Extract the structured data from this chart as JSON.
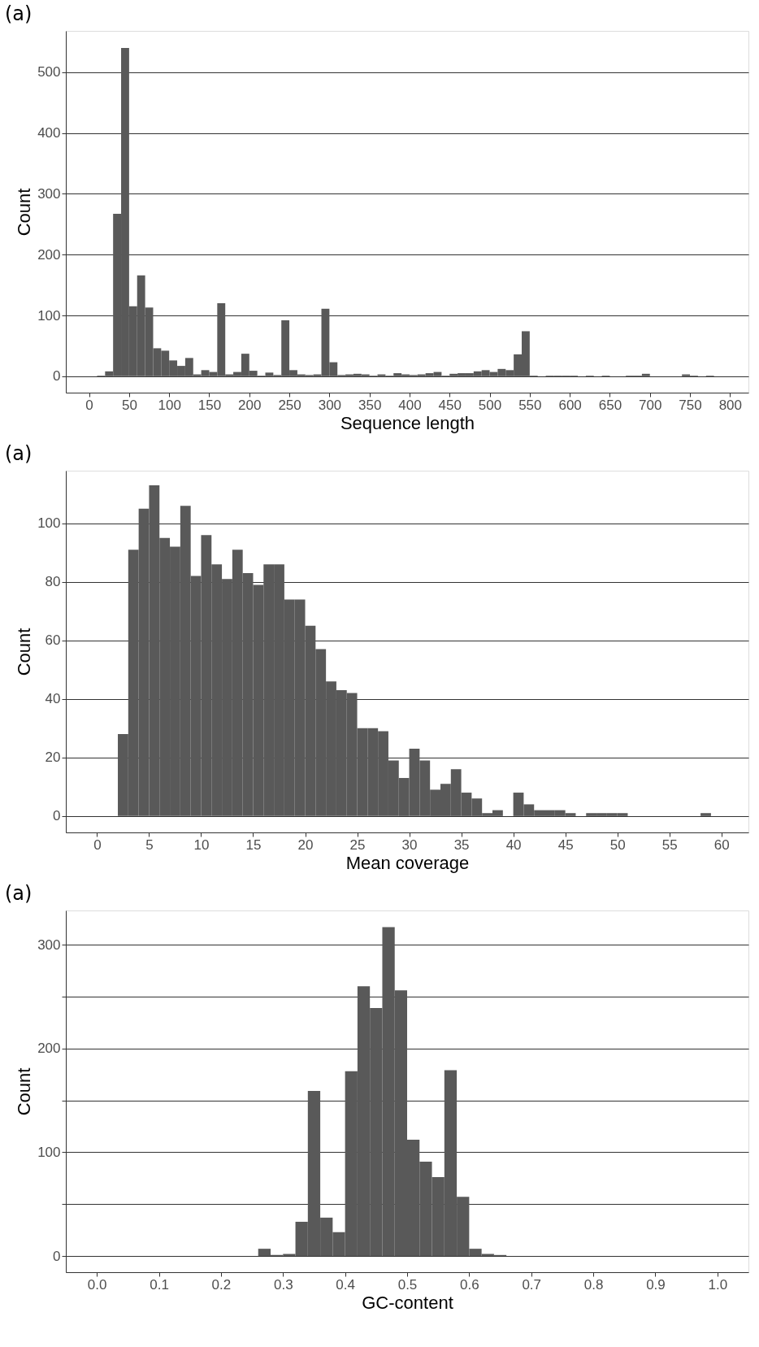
{
  "chart_data": [
    {
      "type": "histogram",
      "title": "(a)",
      "xlabel": "Sequence length",
      "ylabel": "Count",
      "color": "#595959",
      "grid": "y",
      "bins": [
        10,
        20,
        30,
        40,
        50,
        60,
        70,
        80,
        90,
        100,
        110,
        120,
        130,
        140,
        150,
        160,
        170,
        180,
        190,
        200,
        210,
        220,
        230,
        240,
        250,
        260,
        270,
        280,
        290,
        300,
        310,
        320,
        330,
        340,
        350,
        360,
        370,
        380,
        390,
        400,
        410,
        420,
        430,
        440,
        450,
        460,
        470,
        480,
        490,
        500,
        510,
        520,
        530,
        540,
        550,
        560,
        570,
        580,
        590,
        600,
        610,
        620,
        630,
        640,
        650,
        660,
        670,
        680,
        690,
        700,
        710,
        720,
        730,
        740,
        750,
        760,
        770,
        780
      ],
      "values": [
        1,
        8,
        267,
        540,
        115,
        166,
        113,
        46,
        42,
        26,
        17,
        30,
        3,
        10,
        7,
        120,
        3,
        7,
        37,
        9,
        1,
        6,
        2,
        92,
        10,
        3,
        2,
        3,
        111,
        23,
        2,
        3,
        4,
        3,
        1,
        3,
        1,
        5,
        3,
        2,
        3,
        5,
        7,
        1,
        4,
        5,
        5,
        8,
        10,
        7,
        12,
        10,
        36,
        74,
        1,
        0,
        1,
        1,
        1,
        1,
        0,
        1,
        0,
        1,
        0,
        0,
        1,
        1,
        4,
        0,
        0,
        0,
        0,
        3,
        1,
        0,
        1
      ],
      "xlim": [
        -29,
        823
      ],
      "ylim": [
        -27,
        568
      ],
      "xticks": [
        0,
        50,
        100,
        150,
        200,
        250,
        300,
        350,
        400,
        450,
        500,
        550,
        600,
        650,
        700,
        750,
        800
      ],
      "yticks": [
        0,
        100,
        200,
        300,
        400,
        500
      ]
    },
    {
      "type": "histogram",
      "title": "(a)",
      "xlabel": "Mean coverage",
      "ylabel": "Count",
      "color": "#595959",
      "grid": "y",
      "bins": [
        2,
        3,
        4,
        5,
        6,
        7,
        8,
        9,
        10,
        11,
        12,
        13,
        14,
        15,
        16,
        17,
        18,
        19,
        20,
        21,
        22,
        23,
        24,
        25,
        26,
        27,
        28,
        29,
        30,
        31,
        32,
        33,
        34,
        35,
        36,
        37,
        38,
        39,
        40,
        41,
        42,
        43,
        44,
        45,
        46,
        47,
        48,
        49,
        50,
        51,
        52,
        53,
        54,
        55,
        56,
        57,
        58,
        59
      ],
      "values": [
        28,
        91,
        105,
        113,
        95,
        92,
        106,
        82,
        96,
        86,
        81,
        91,
        83,
        79,
        86,
        86,
        74,
        74,
        65,
        57,
        46,
        43,
        42,
        30,
        30,
        29,
        19,
        13,
        23,
        19,
        9,
        11,
        16,
        8,
        6,
        1,
        2,
        0,
        8,
        4,
        2,
        2,
        2,
        1,
        0,
        1,
        1,
        1,
        1,
        0,
        0,
        0,
        0,
        0,
        0,
        0,
        1
      ],
      "xlim": [
        -3,
        62.6
      ],
      "ylim": [
        -5.6,
        118
      ],
      "xticks": [
        0,
        5,
        10,
        15,
        20,
        25,
        30,
        35,
        40,
        45,
        50,
        55,
        60
      ],
      "yticks": [
        0,
        20,
        40,
        60,
        80,
        100
      ]
    },
    {
      "type": "histogram",
      "title": "(a)",
      "xlabel": "GC-content",
      "ylabel": "Count",
      "color": "#595959",
      "grid": "y",
      "bins": [
        0.26,
        0.28,
        0.3,
        0.32,
        0.34,
        0.36,
        0.38,
        0.4,
        0.42,
        0.44,
        0.46,
        0.48,
        0.5,
        0.52,
        0.54,
        0.56,
        0.58,
        0.6,
        0.62,
        0.64,
        0.66
      ],
      "values": [
        7,
        1,
        2,
        33,
        159,
        37,
        23,
        178,
        260,
        239,
        317,
        256,
        112,
        91,
        76,
        179,
        57,
        7,
        2,
        1
      ],
      "xlim": [
        -0.05,
        1.05
      ],
      "ylim": [
        -15.6,
        333
      ],
      "xticks": [
        {
          "value": 0,
          "label": "0.0"
        },
        0.1,
        0.2,
        0.3,
        0.4,
        0.5,
        0.6,
        0.7,
        0.8,
        0.9,
        {
          "value": 1,
          "label": "1.0"
        }
      ],
      "yticks": [
        0,
        {
          "value": 50,
          "label": null
        },
        100,
        {
          "value": 150,
          "label": null
        },
        200,
        {
          "value": 250,
          "label": null
        },
        300
      ]
    }
  ]
}
